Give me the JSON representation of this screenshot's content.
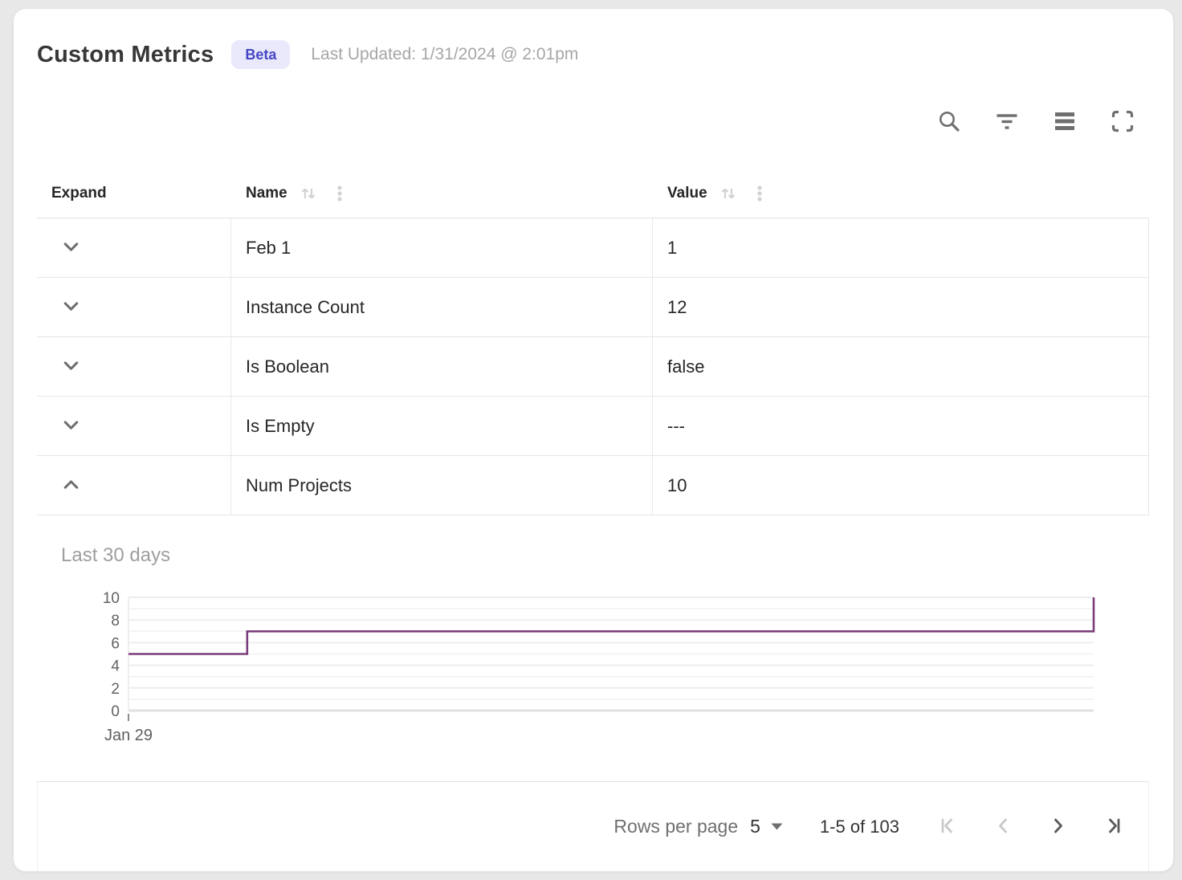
{
  "header": {
    "title": "Custom Metrics",
    "badge": "Beta",
    "last_updated": "Last Updated: 1/31/2024 @ 2:01pm"
  },
  "toolbar": {
    "buttons": [
      "search",
      "filter",
      "density",
      "fullscreen"
    ]
  },
  "table": {
    "columns": [
      {
        "label": "Expand",
        "sortable": false
      },
      {
        "label": "Name",
        "sortable": true
      },
      {
        "label": "Value",
        "sortable": true
      }
    ],
    "rows": [
      {
        "name": "Feb 1",
        "value": "1",
        "expanded": false
      },
      {
        "name": "Instance Count",
        "value": "12",
        "expanded": false
      },
      {
        "name": "Is Boolean",
        "value": "false",
        "expanded": false
      },
      {
        "name": "Is Empty",
        "value": "---",
        "expanded": false
      },
      {
        "name": "Num Projects",
        "value": "10",
        "expanded": true
      }
    ]
  },
  "detail": {
    "label": "Last 30 days"
  },
  "chart_data": {
    "type": "line",
    "line_style": "step",
    "title": "Last 30 days",
    "series": [
      {
        "name": "Num Projects",
        "color": "#7A3D7B",
        "points": [
          [
            0,
            5
          ],
          [
            0.123,
            5
          ],
          [
            0.123,
            7
          ],
          [
            1,
            7
          ],
          [
            1,
            10
          ]
        ]
      }
    ],
    "x_axis": {
      "tick_labels": [
        "Jan 29"
      ],
      "range_days": 30,
      "tick_position": "start"
    },
    "y_axis": {
      "min": 0,
      "max": 10,
      "tick_labels": [
        10,
        8,
        6,
        4,
        2,
        0
      ],
      "gridline_step": 1
    },
    "grid": true,
    "legend": false
  },
  "footer": {
    "rows_per_page_label": "Rows per page",
    "rows_per_page_value": "5",
    "range_label": "1-5 of 103",
    "pagination": {
      "first_enabled": false,
      "prev_enabled": false,
      "next_enabled": true,
      "last_enabled": true
    }
  },
  "colors": {
    "accent": "#4646C5",
    "badge_bg": "#E9E9FB",
    "chart_line": "#7A3D7B",
    "gridline": "#EDEDED",
    "baseline": "#E0E0E0",
    "muted_text": "#9E9E9E"
  }
}
